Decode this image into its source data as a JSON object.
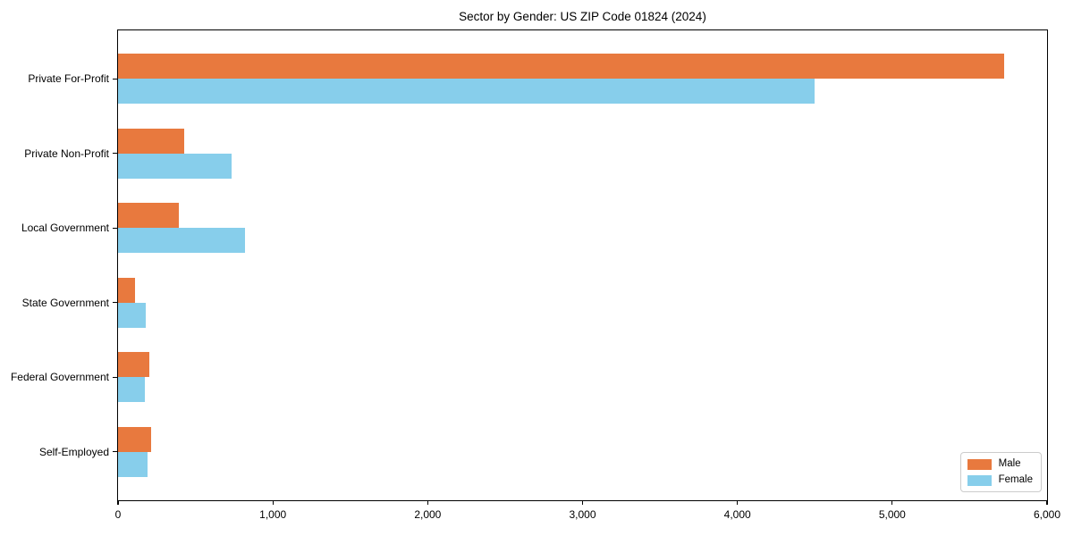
{
  "chart_data": {
    "type": "bar",
    "orientation": "horizontal",
    "title": "Sector by Gender: US ZIP Code 01824 (2024)",
    "categories": [
      "Private For-Profit",
      "Private Non-Profit",
      "Local Government",
      "State Government",
      "Federal Government",
      "Self-Employed"
    ],
    "series": [
      {
        "name": "Male",
        "color": "#e8793e",
        "values": [
          5720,
          430,
          390,
          110,
          205,
          215
        ]
      },
      {
        "name": "Female",
        "color": "#87ceeb",
        "values": [
          4500,
          735,
          820,
          180,
          175,
          190
        ]
      }
    ],
    "xlabel": "",
    "ylabel": "",
    "xlim": [
      0,
      6000
    ],
    "x_ticks": [
      0,
      1000,
      2000,
      3000,
      4000,
      5000,
      6000
    ],
    "x_tick_labels": [
      "0",
      "1,000",
      "2,000",
      "3,000",
      "4,000",
      "5,000",
      "6,000"
    ],
    "grid": false,
    "legend_position": "lower right",
    "frame_color": "#000000",
    "background_color": "#ffffff"
  }
}
